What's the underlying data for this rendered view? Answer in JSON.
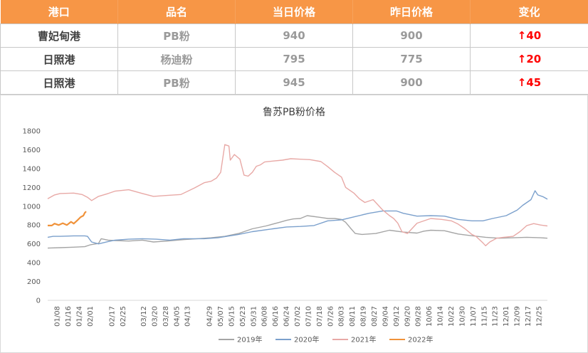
{
  "table": {
    "headers": [
      "港口",
      "品名",
      "当日价格",
      "昨日价格",
      "变化"
    ],
    "rows": [
      {
        "port": "曹妃甸港",
        "product": "PB粉",
        "today": "940",
        "yesterday": "900",
        "change": "40"
      },
      {
        "port": "日照港",
        "product": "杨迪粉",
        "today": "795",
        "yesterday": "775",
        "change": "20"
      },
      {
        "port": "日照港",
        "product": "PB粉",
        "today": "945",
        "yesterday": "900",
        "change": "45"
      }
    ],
    "change_arrow": "↑"
  },
  "colors": {
    "header_bg": "#f79646",
    "up": "#ff0000",
    "s2019": "#a5a5a5",
    "s2020": "#7ba0cc",
    "s2021": "#e8a9a6",
    "s2022": "#f0923a"
  },
  "chart_data": {
    "type": "line",
    "title": "鲁苏PB粉价格",
    "ylim": [
      0,
      1800
    ],
    "yticks": [
      0,
      200,
      400,
      600,
      800,
      1000,
      1200,
      1400,
      1600,
      1800
    ],
    "xlim_day": [
      1,
      365
    ],
    "x_ticks": [
      {
        "label": "01/08",
        "day": 8
      },
      {
        "label": "01/16",
        "day": 16
      },
      {
        "label": "01/24",
        "day": 24
      },
      {
        "label": "02/01",
        "day": 32
      },
      {
        "label": "02/17",
        "day": 48
      },
      {
        "label": "02/25",
        "day": 56
      },
      {
        "label": "03/12",
        "day": 71
      },
      {
        "label": "03/20",
        "day": 79
      },
      {
        "label": "03/28",
        "day": 87
      },
      {
        "label": "04/05",
        "day": 95
      },
      {
        "label": "04/13",
        "day": 103
      },
      {
        "label": "04/29",
        "day": 119
      },
      {
        "label": "05/07",
        "day": 127
      },
      {
        "label": "05/15",
        "day": 135
      },
      {
        "label": "05/23",
        "day": 143
      },
      {
        "label": "05/31",
        "day": 151
      },
      {
        "label": "06/08",
        "day": 159
      },
      {
        "label": "06/16",
        "day": 167
      },
      {
        "label": "06/24",
        "day": 175
      },
      {
        "label": "07/02",
        "day": 183
      },
      {
        "label": "07/10",
        "day": 191
      },
      {
        "label": "07/18",
        "day": 199
      },
      {
        "label": "07/26",
        "day": 207
      },
      {
        "label": "08/03",
        "day": 215
      },
      {
        "label": "08/11",
        "day": 223
      },
      {
        "label": "08/19",
        "day": 231
      },
      {
        "label": "08/27",
        "day": 239
      },
      {
        "label": "09/04",
        "day": 247
      },
      {
        "label": "09/12",
        "day": 255
      },
      {
        "label": "09/20",
        "day": 263
      },
      {
        "label": "09/28",
        "day": 271
      },
      {
        "label": "10/06",
        "day": 279
      },
      {
        "label": "10/14",
        "day": 287
      },
      {
        "label": "10/22",
        "day": 295
      },
      {
        "label": "10/30",
        "day": 303
      },
      {
        "label": "11/07",
        "day": 311
      },
      {
        "label": "11/15",
        "day": 319
      },
      {
        "label": "11/23",
        "day": 327
      },
      {
        "label": "12/01",
        "day": 335
      },
      {
        "label": "12/09",
        "day": 343
      },
      {
        "label": "12/17",
        "day": 351
      },
      {
        "label": "12/25",
        "day": 359
      }
    ],
    "series": [
      {
        "name": "2019年",
        "color": "#a5a5a5",
        "points": [
          [
            1,
            555
          ],
          [
            10,
            560
          ],
          [
            20,
            565
          ],
          [
            28,
            570
          ],
          [
            32,
            590
          ],
          [
            38,
            605
          ],
          [
            40,
            655
          ],
          [
            45,
            640
          ],
          [
            50,
            635
          ],
          [
            60,
            630
          ],
          [
            70,
            640
          ],
          [
            78,
            620
          ],
          [
            88,
            630
          ],
          [
            100,
            645
          ],
          [
            110,
            655
          ],
          [
            120,
            665
          ],
          [
            130,
            680
          ],
          [
            140,
            710
          ],
          [
            150,
            760
          ],
          [
            160,
            790
          ],
          [
            170,
            830
          ],
          [
            175,
            850
          ],
          [
            180,
            865
          ],
          [
            185,
            870
          ],
          [
            190,
            900
          ],
          [
            200,
            880
          ],
          [
            205,
            870
          ],
          [
            210,
            870
          ],
          [
            215,
            860
          ],
          [
            218,
            830
          ],
          [
            222,
            760
          ],
          [
            225,
            710
          ],
          [
            230,
            700
          ],
          [
            240,
            710
          ],
          [
            250,
            745
          ],
          [
            260,
            725
          ],
          [
            270,
            715
          ],
          [
            275,
            735
          ],
          [
            280,
            745
          ],
          [
            290,
            740
          ],
          [
            300,
            705
          ],
          [
            308,
            690
          ],
          [
            320,
            670
          ],
          [
            330,
            660
          ],
          [
            340,
            665
          ],
          [
            350,
            670
          ],
          [
            360,
            665
          ],
          [
            365,
            660
          ]
        ]
      },
      {
        "name": "2020年",
        "color": "#7ba0cc",
        "points": [
          [
            1,
            670
          ],
          [
            5,
            680
          ],
          [
            10,
            680
          ],
          [
            20,
            685
          ],
          [
            28,
            685
          ],
          [
            30,
            680
          ],
          [
            33,
            620
          ],
          [
            38,
            600
          ],
          [
            45,
            625
          ],
          [
            50,
            640
          ],
          [
            60,
            650
          ],
          [
            70,
            655
          ],
          [
            80,
            650
          ],
          [
            90,
            640
          ],
          [
            100,
            655
          ],
          [
            115,
            655
          ],
          [
            125,
            665
          ],
          [
            140,
            700
          ],
          [
            150,
            730
          ],
          [
            165,
            760
          ],
          [
            175,
            780
          ],
          [
            185,
            785
          ],
          [
            195,
            795
          ],
          [
            205,
            845
          ],
          [
            215,
            855
          ],
          [
            225,
            890
          ],
          [
            235,
            925
          ],
          [
            245,
            950
          ],
          [
            255,
            950
          ],
          [
            260,
            925
          ],
          [
            270,
            895
          ],
          [
            280,
            900
          ],
          [
            290,
            895
          ],
          [
            300,
            860
          ],
          [
            310,
            845
          ],
          [
            318,
            845
          ],
          [
            325,
            870
          ],
          [
            335,
            900
          ],
          [
            343,
            960
          ],
          [
            347,
            1010
          ],
          [
            350,
            1040
          ],
          [
            353,
            1070
          ],
          [
            356,
            1165
          ],
          [
            358,
            1120
          ],
          [
            362,
            1100
          ],
          [
            365,
            1075
          ]
        ]
      },
      {
        "name": "2021年",
        "color": "#e8a9a6",
        "points": [
          [
            1,
            1080
          ],
          [
            6,
            1120
          ],
          [
            10,
            1135
          ],
          [
            20,
            1140
          ],
          [
            26,
            1125
          ],
          [
            30,
            1095
          ],
          [
            33,
            1060
          ],
          [
            38,
            1105
          ],
          [
            45,
            1135
          ],
          [
            50,
            1160
          ],
          [
            60,
            1175
          ],
          [
            70,
            1135
          ],
          [
            78,
            1105
          ],
          [
            88,
            1115
          ],
          [
            98,
            1125
          ],
          [
            108,
            1195
          ],
          [
            115,
            1250
          ],
          [
            120,
            1265
          ],
          [
            124,
            1300
          ],
          [
            127,
            1360
          ],
          [
            130,
            1655
          ],
          [
            133,
            1640
          ],
          [
            134,
            1490
          ],
          [
            137,
            1550
          ],
          [
            141,
            1500
          ],
          [
            144,
            1330
          ],
          [
            147,
            1320
          ],
          [
            150,
            1360
          ],
          [
            153,
            1425
          ],
          [
            156,
            1440
          ],
          [
            159,
            1470
          ],
          [
            165,
            1480
          ],
          [
            172,
            1490
          ],
          [
            178,
            1505
          ],
          [
            185,
            1500
          ],
          [
            192,
            1495
          ],
          [
            200,
            1475
          ],
          [
            205,
            1420
          ],
          [
            210,
            1360
          ],
          [
            215,
            1310
          ],
          [
            218,
            1200
          ],
          [
            224,
            1140
          ],
          [
            228,
            1080
          ],
          [
            232,
            1040
          ],
          [
            238,
            1070
          ],
          [
            245,
            960
          ],
          [
            250,
            900
          ],
          [
            253,
            870
          ],
          [
            256,
            820
          ],
          [
            259,
            730
          ],
          [
            263,
            710
          ],
          [
            270,
            820
          ],
          [
            280,
            870
          ],
          [
            288,
            860
          ],
          [
            295,
            845
          ],
          [
            300,
            810
          ],
          [
            305,
            760
          ],
          [
            310,
            700
          ],
          [
            313,
            680
          ],
          [
            318,
            610
          ],
          [
            320,
            580
          ],
          [
            323,
            620
          ],
          [
            328,
            660
          ],
          [
            333,
            670
          ],
          [
            340,
            680
          ],
          [
            345,
            730
          ],
          [
            350,
            795
          ],
          [
            355,
            815
          ],
          [
            360,
            800
          ],
          [
            365,
            790
          ]
        ]
      },
      {
        "name": "2022年",
        "color": "#f0923a",
        "points": [
          [
            1,
            795
          ],
          [
            4,
            795
          ],
          [
            6,
            815
          ],
          [
            9,
            800
          ],
          [
            12,
            820
          ],
          [
            15,
            800
          ],
          [
            18,
            835
          ],
          [
            20,
            815
          ],
          [
            23,
            855
          ],
          [
            25,
            885
          ],
          [
            27,
            900
          ],
          [
            28,
            930
          ],
          [
            29,
            945
          ]
        ]
      }
    ]
  }
}
